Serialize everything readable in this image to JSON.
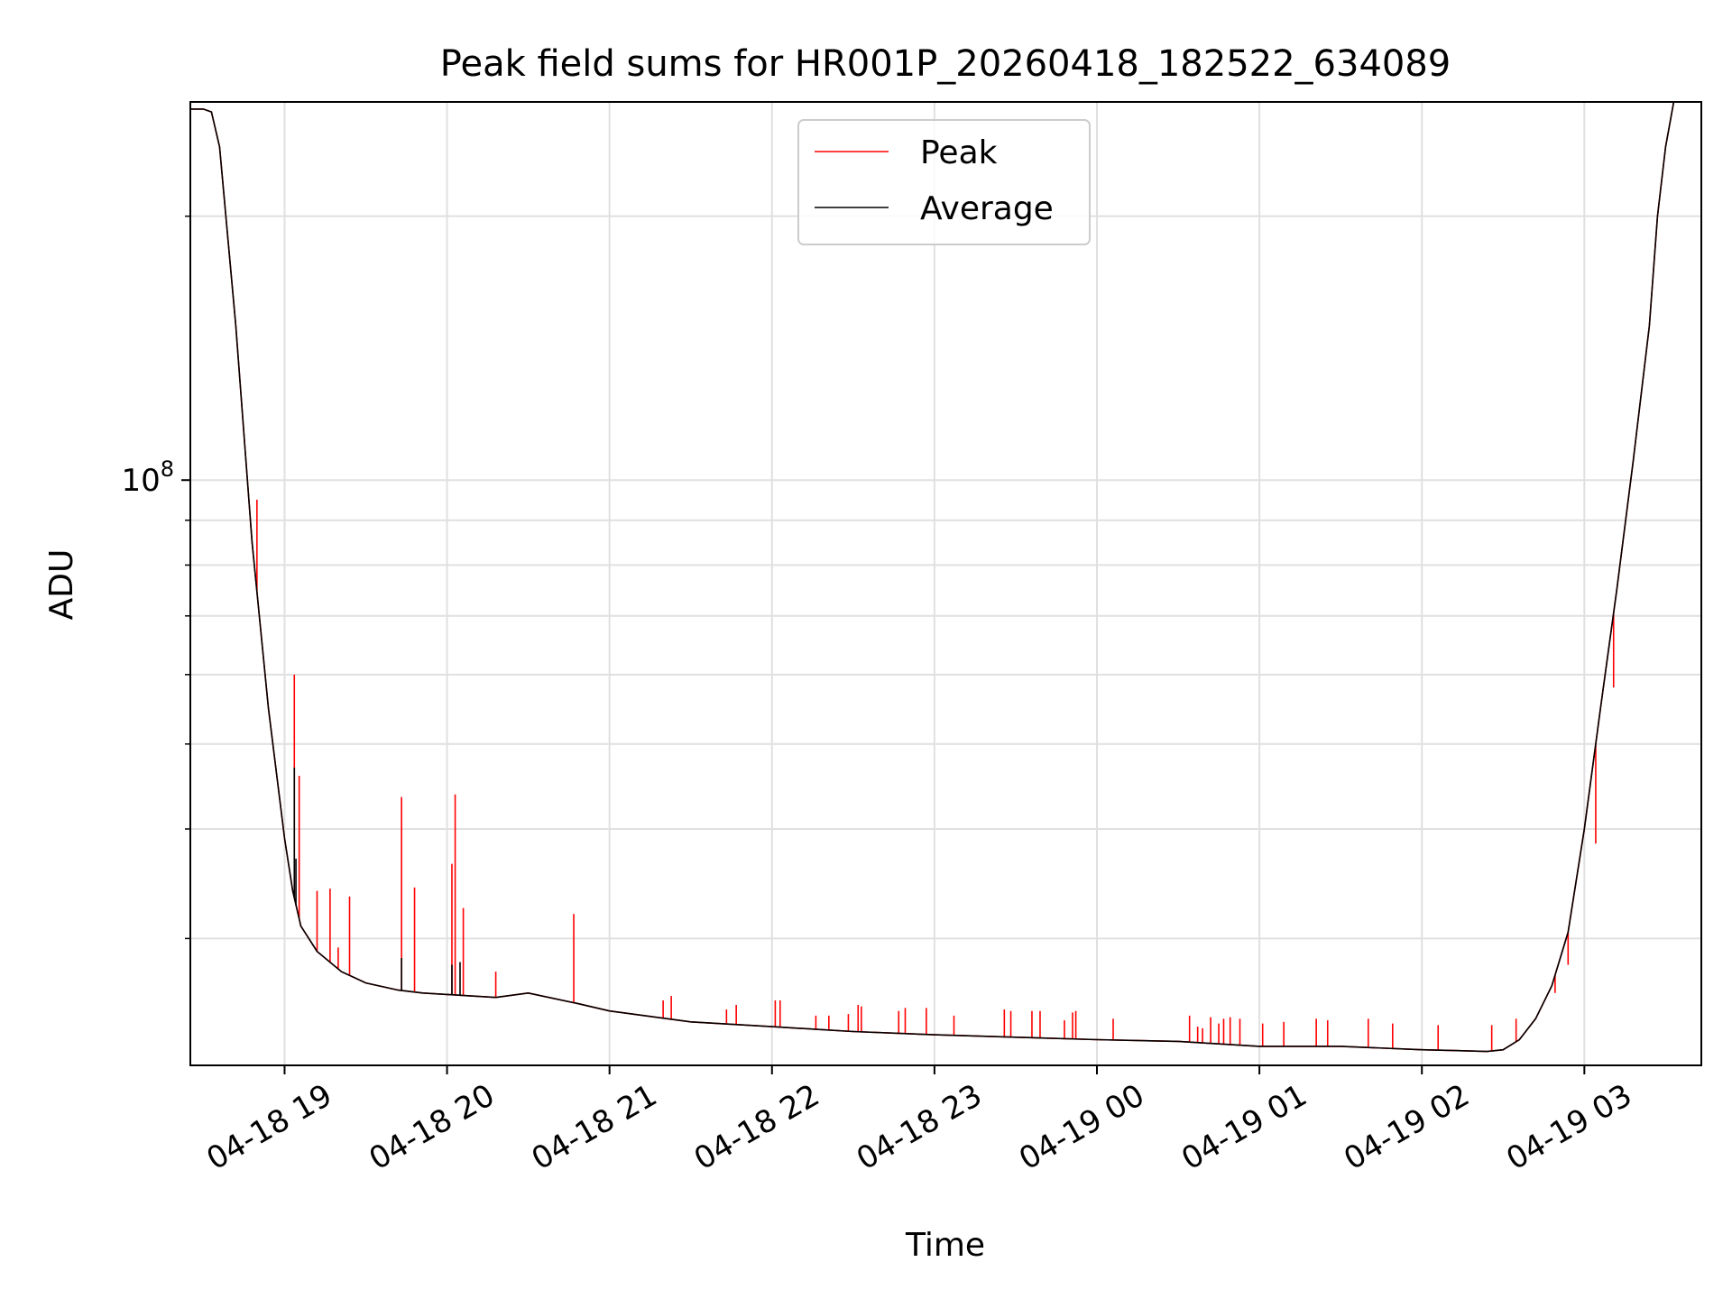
{
  "chart_data": {
    "type": "line",
    "title": "Peak field sums for HR001P_20260418_182522_634089",
    "xlabel": "Time",
    "ylabel": "ADU",
    "yscale": "log",
    "grid": true,
    "legend_location": "upper center",
    "x_ticks": [
      "04-18 19",
      "04-18 20",
      "04-18 21",
      "04-18 22",
      "04-18 23",
      "04-19 00",
      "04-19 01",
      "04-19 02",
      "04-19 03"
    ],
    "xlim_hours": [
      18.42,
      27.72
    ],
    "y_tick_label": {
      "base": "10",
      "exp": "8"
    },
    "ylim": [
      21500000,
      270000000
    ],
    "colors": {
      "peak": "#ff0000",
      "average": "#000000",
      "grid": "#e0e0e0"
    },
    "series": [
      {
        "name": "Peak",
        "color": "#ff0000",
        "x_hours": [
          18.42,
          18.5,
          18.55,
          18.6,
          18.7,
          18.8,
          18.9,
          19.0,
          19.05,
          19.1,
          19.2,
          19.35,
          19.5,
          19.7,
          19.85,
          20.0,
          20.3,
          20.5,
          20.8,
          21.0,
          21.5,
          22.0,
          22.5,
          23.0,
          23.5,
          24.0,
          24.5,
          25.0,
          25.5,
          26.0,
          26.2,
          26.4,
          26.5,
          26.6,
          26.7,
          26.8,
          26.9,
          27.0,
          27.1,
          27.2,
          27.3,
          27.4,
          27.45,
          27.5,
          27.55
        ],
        "values": [
          265000000,
          265000000,
          263000000,
          240000000,
          150000000,
          85000000,
          55000000,
          39000000,
          34000000,
          31000000,
          29000000,
          27500000,
          26700000,
          26200000,
          26000000,
          25900000,
          25700000,
          26000000,
          25300000,
          24800000,
          24100000,
          23800000,
          23500000,
          23300000,
          23150000,
          23000000,
          22900000,
          22600000,
          22600000,
          22400000,
          22350000,
          22300000,
          22400000,
          23000000,
          24300000,
          26500000,
          30500000,
          40000000,
          55000000,
          75000000,
          105000000,
          150000000,
          200000000,
          240000000,
          270000000
        ],
        "spikes": [
          {
            "x": 18.83,
            "y": 95000000
          },
          {
            "x": 19.06,
            "y": 60000000
          },
          {
            "x": 19.09,
            "y": 46000000
          },
          {
            "x": 19.2,
            "y": 34000000
          },
          {
            "x": 19.28,
            "y": 34200000
          },
          {
            "x": 19.33,
            "y": 29300000
          },
          {
            "x": 19.4,
            "y": 33500000
          },
          {
            "x": 19.72,
            "y": 43500000
          },
          {
            "x": 19.8,
            "y": 34300000
          },
          {
            "x": 20.03,
            "y": 36500000
          },
          {
            "x": 20.05,
            "y": 43800000
          },
          {
            "x": 20.1,
            "y": 32500000
          },
          {
            "x": 20.3,
            "y": 27500000
          },
          {
            "x": 20.78,
            "y": 32000000
          },
          {
            "x": 21.33,
            "y": 25500000
          },
          {
            "x": 21.38,
            "y": 25800000
          },
          {
            "x": 21.72,
            "y": 24900000
          },
          {
            "x": 21.78,
            "y": 25200000
          },
          {
            "x": 22.02,
            "y": 25500000
          },
          {
            "x": 22.05,
            "y": 25500000
          },
          {
            "x": 22.27,
            "y": 24500000
          },
          {
            "x": 22.35,
            "y": 24500000
          },
          {
            "x": 22.47,
            "y": 24600000
          },
          {
            "x": 22.53,
            "y": 25200000
          },
          {
            "x": 22.55,
            "y": 25100000
          },
          {
            "x": 22.78,
            "y": 24800000
          },
          {
            "x": 22.82,
            "y": 25000000
          },
          {
            "x": 22.95,
            "y": 25000000
          },
          {
            "x": 23.12,
            "y": 24500000
          },
          {
            "x": 23.43,
            "y": 24900000
          },
          {
            "x": 23.47,
            "y": 24800000
          },
          {
            "x": 23.6,
            "y": 24800000
          },
          {
            "x": 23.65,
            "y": 24800000
          },
          {
            "x": 23.8,
            "y": 24200000
          },
          {
            "x": 23.85,
            "y": 24700000
          },
          {
            "x": 23.87,
            "y": 24800000
          },
          {
            "x": 24.1,
            "y": 24300000
          },
          {
            "x": 24.57,
            "y": 24500000
          },
          {
            "x": 24.62,
            "y": 23800000
          },
          {
            "x": 24.65,
            "y": 23700000
          },
          {
            "x": 24.7,
            "y": 24400000
          },
          {
            "x": 24.75,
            "y": 24000000
          },
          {
            "x": 24.78,
            "y": 24300000
          },
          {
            "x": 24.82,
            "y": 24400000
          },
          {
            "x": 24.88,
            "y": 24300000
          },
          {
            "x": 25.02,
            "y": 24000000
          },
          {
            "x": 25.15,
            "y": 24100000
          },
          {
            "x": 25.35,
            "y": 24300000
          },
          {
            "x": 25.42,
            "y": 24200000
          },
          {
            "x": 25.67,
            "y": 24300000
          },
          {
            "x": 25.82,
            "y": 24000000
          },
          {
            "x": 26.1,
            "y": 23900000
          },
          {
            "x": 26.43,
            "y": 23900000
          },
          {
            "x": 26.58,
            "y": 24300000
          },
          {
            "x": 26.82,
            "y": 26000000
          },
          {
            "x": 26.9,
            "y": 28000000
          },
          {
            "x": 27.07,
            "y": 38500000
          },
          {
            "x": 27.18,
            "y": 58000000
          }
        ]
      },
      {
        "name": "Average",
        "color": "#000000",
        "x_hours": [
          18.42,
          18.5,
          18.55,
          18.6,
          18.7,
          18.8,
          18.9,
          19.0,
          19.05,
          19.1,
          19.2,
          19.35,
          19.5,
          19.7,
          19.85,
          20.0,
          20.3,
          20.5,
          20.8,
          21.0,
          21.5,
          22.0,
          22.5,
          23.0,
          23.5,
          24.0,
          24.5,
          25.0,
          25.5,
          26.0,
          26.2,
          26.4,
          26.5,
          26.6,
          26.7,
          26.8,
          26.9,
          27.0,
          27.1,
          27.2,
          27.3,
          27.4,
          27.45,
          27.5,
          27.55
        ],
        "values": [
          265000000,
          265000000,
          263000000,
          240000000,
          150000000,
          85000000,
          55000000,
          39000000,
          34000000,
          31000000,
          29000000,
          27500000,
          26700000,
          26200000,
          26000000,
          25900000,
          25700000,
          26000000,
          25300000,
          24800000,
          24100000,
          23800000,
          23500000,
          23300000,
          23150000,
          23000000,
          22900000,
          22600000,
          22600000,
          22400000,
          22350000,
          22300000,
          22400000,
          23000000,
          24300000,
          26500000,
          30500000,
          40000000,
          55000000,
          75000000,
          105000000,
          150000000,
          200000000,
          240000000,
          270000000
        ],
        "spikes": [
          {
            "x": 19.06,
            "y": 47000000
          },
          {
            "x": 19.07,
            "y": 37000000
          },
          {
            "x": 19.72,
            "y": 28500000
          },
          {
            "x": 20.03,
            "y": 28000000
          },
          {
            "x": 20.08,
            "y": 28200000
          }
        ]
      }
    ]
  }
}
